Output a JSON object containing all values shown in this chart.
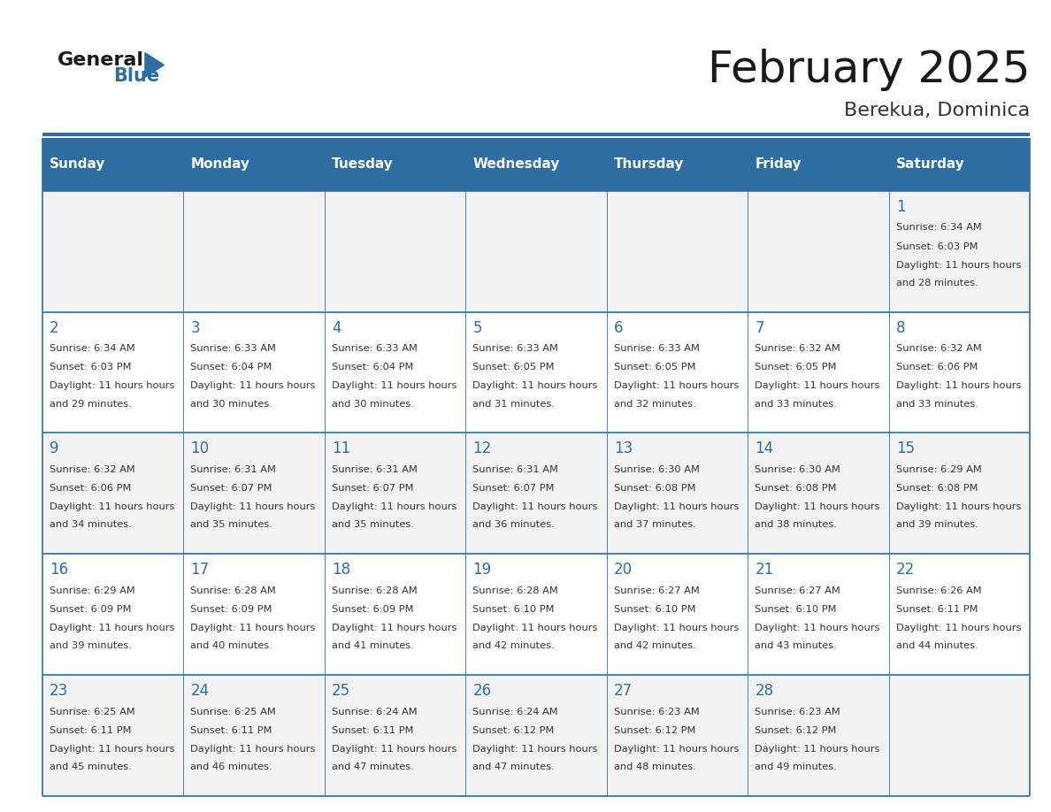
{
  "title": "February 2025",
  "subtitle": "Berekua, Dominica",
  "header_bg": "#2E6DA4",
  "header_text": "#FFFFFF",
  "cell_bg_odd": "#F2F2F2",
  "cell_bg_even": "#FFFFFF",
  "cell_border": "#2E6DA4",
  "day_headers": [
    "Sunday",
    "Monday",
    "Tuesday",
    "Wednesday",
    "Thursday",
    "Friday",
    "Saturday"
  ],
  "title_color": "#1a1a1a",
  "subtitle_color": "#333333",
  "day_num_color": "#2E6DA4",
  "info_color": "#333333",
  "logo_general_color": "#1a1a1a",
  "logo_blue_color": "#2E6DA4",
  "calendar_data": [
    [
      null,
      null,
      null,
      null,
      null,
      null,
      {
        "day": 1,
        "sunrise": "6:34 AM",
        "sunset": "6:03 PM",
        "daylight": "11 hours and 28 minutes."
      }
    ],
    [
      {
        "day": 2,
        "sunrise": "6:34 AM",
        "sunset": "6:03 PM",
        "daylight": "11 hours and 29 minutes."
      },
      {
        "day": 3,
        "sunrise": "6:33 AM",
        "sunset": "6:04 PM",
        "daylight": "11 hours and 30 minutes."
      },
      {
        "day": 4,
        "sunrise": "6:33 AM",
        "sunset": "6:04 PM",
        "daylight": "11 hours and 30 minutes."
      },
      {
        "day": 5,
        "sunrise": "6:33 AM",
        "sunset": "6:05 PM",
        "daylight": "11 hours and 31 minutes."
      },
      {
        "day": 6,
        "sunrise": "6:33 AM",
        "sunset": "6:05 PM",
        "daylight": "11 hours and 32 minutes."
      },
      {
        "day": 7,
        "sunrise": "6:32 AM",
        "sunset": "6:05 PM",
        "daylight": "11 hours and 33 minutes."
      },
      {
        "day": 8,
        "sunrise": "6:32 AM",
        "sunset": "6:06 PM",
        "daylight": "11 hours and 33 minutes."
      }
    ],
    [
      {
        "day": 9,
        "sunrise": "6:32 AM",
        "sunset": "6:06 PM",
        "daylight": "11 hours and 34 minutes."
      },
      {
        "day": 10,
        "sunrise": "6:31 AM",
        "sunset": "6:07 PM",
        "daylight": "11 hours and 35 minutes."
      },
      {
        "day": 11,
        "sunrise": "6:31 AM",
        "sunset": "6:07 PM",
        "daylight": "11 hours and 35 minutes."
      },
      {
        "day": 12,
        "sunrise": "6:31 AM",
        "sunset": "6:07 PM",
        "daylight": "11 hours and 36 minutes."
      },
      {
        "day": 13,
        "sunrise": "6:30 AM",
        "sunset": "6:08 PM",
        "daylight": "11 hours and 37 minutes."
      },
      {
        "day": 14,
        "sunrise": "6:30 AM",
        "sunset": "6:08 PM",
        "daylight": "11 hours and 38 minutes."
      },
      {
        "day": 15,
        "sunrise": "6:29 AM",
        "sunset": "6:08 PM",
        "daylight": "11 hours and 39 minutes."
      }
    ],
    [
      {
        "day": 16,
        "sunrise": "6:29 AM",
        "sunset": "6:09 PM",
        "daylight": "11 hours and 39 minutes."
      },
      {
        "day": 17,
        "sunrise": "6:28 AM",
        "sunset": "6:09 PM",
        "daylight": "11 hours and 40 minutes."
      },
      {
        "day": 18,
        "sunrise": "6:28 AM",
        "sunset": "6:09 PM",
        "daylight": "11 hours and 41 minutes."
      },
      {
        "day": 19,
        "sunrise": "6:28 AM",
        "sunset": "6:10 PM",
        "daylight": "11 hours and 42 minutes."
      },
      {
        "day": 20,
        "sunrise": "6:27 AM",
        "sunset": "6:10 PM",
        "daylight": "11 hours and 42 minutes."
      },
      {
        "day": 21,
        "sunrise": "6:27 AM",
        "sunset": "6:10 PM",
        "daylight": "11 hours and 43 minutes."
      },
      {
        "day": 22,
        "sunrise": "6:26 AM",
        "sunset": "6:11 PM",
        "daylight": "11 hours and 44 minutes."
      }
    ],
    [
      {
        "day": 23,
        "sunrise": "6:25 AM",
        "sunset": "6:11 PM",
        "daylight": "11 hours and 45 minutes."
      },
      {
        "day": 24,
        "sunrise": "6:25 AM",
        "sunset": "6:11 PM",
        "daylight": "11 hours and 46 minutes."
      },
      {
        "day": 25,
        "sunrise": "6:24 AM",
        "sunset": "6:11 PM",
        "daylight": "11 hours and 47 minutes."
      },
      {
        "day": 26,
        "sunrise": "6:24 AM",
        "sunset": "6:12 PM",
        "daylight": "11 hours and 47 minutes."
      },
      {
        "day": 27,
        "sunrise": "6:23 AM",
        "sunset": "6:12 PM",
        "daylight": "11 hours and 48 minutes."
      },
      {
        "day": 28,
        "sunrise": "6:23 AM",
        "sunset": "6:12 PM",
        "daylight": "11 hours and 49 minutes."
      },
      null
    ]
  ]
}
